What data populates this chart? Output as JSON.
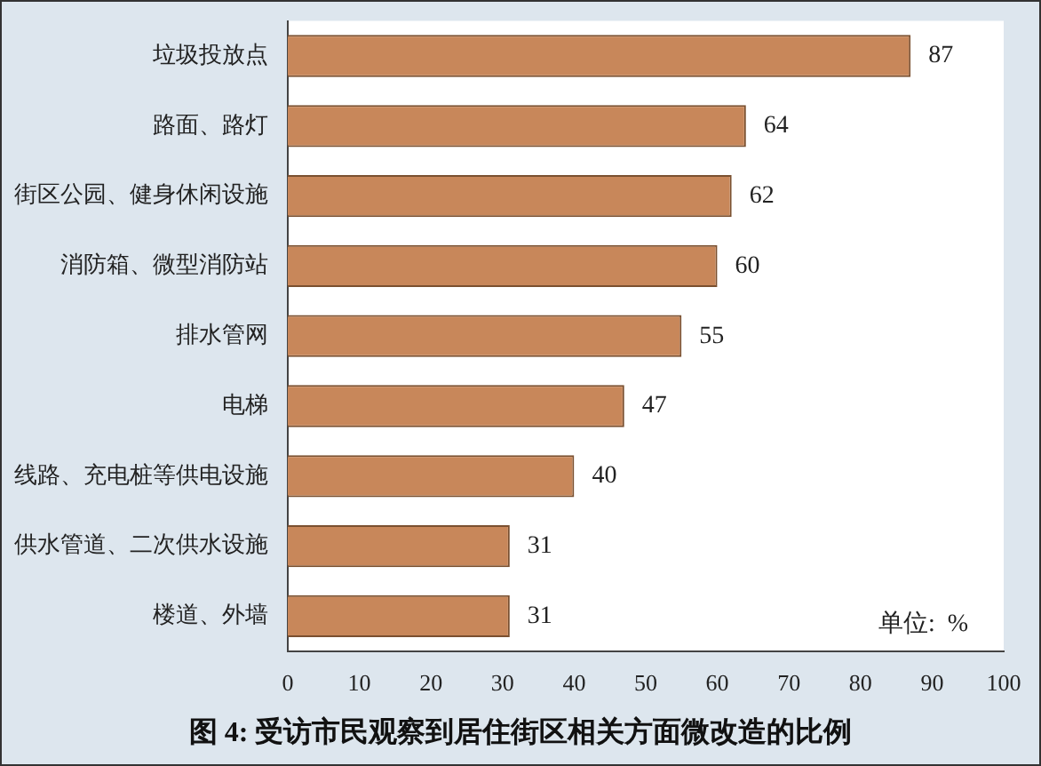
{
  "chart_data": {
    "type": "bar",
    "orientation": "horizontal",
    "title": "图 4:  受访市民观察到居住街区相关方面微改造的比例",
    "categories": [
      "垃圾投放点",
      "路面、路灯",
      "街区公园、健身休闲设施",
      "消防箱、微型消防站",
      "排水管网",
      "电梯",
      "线路、充电桩等供电设施",
      "供水管道、二次供水设施",
      "楼道、外墙"
    ],
    "values": [
      87,
      64,
      62,
      60,
      55,
      47,
      40,
      31,
      31
    ],
    "color": "#c8875a",
    "xlim": [
      0,
      100
    ],
    "xticks": [
      0,
      10,
      20,
      30,
      40,
      50,
      60,
      70,
      80,
      90,
      100
    ],
    "grid": false,
    "data_labels": true,
    "legend": false,
    "annotations": [
      "单位:  %"
    ]
  }
}
